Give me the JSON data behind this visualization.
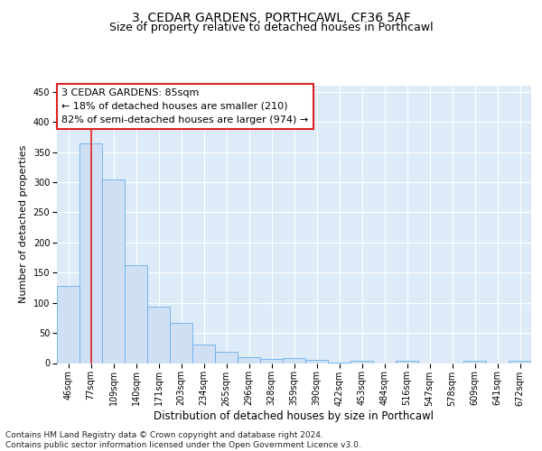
{
  "title_line1": "3, CEDAR GARDENS, PORTHCAWL, CF36 5AF",
  "title_line2": "Size of property relative to detached houses in Porthcawl",
  "xlabel": "Distribution of detached houses by size in Porthcawl",
  "ylabel": "Number of detached properties",
  "bin_labels": [
    "46sqm",
    "77sqm",
    "109sqm",
    "140sqm",
    "171sqm",
    "203sqm",
    "234sqm",
    "265sqm",
    "296sqm",
    "328sqm",
    "359sqm",
    "390sqm",
    "422sqm",
    "453sqm",
    "484sqm",
    "516sqm",
    "547sqm",
    "578sqm",
    "609sqm",
    "641sqm",
    "672sqm"
  ],
  "bar_heights": [
    128,
    365,
    305,
    163,
    93,
    67,
    30,
    18,
    9,
    6,
    8,
    5,
    1,
    3,
    0,
    3,
    0,
    0,
    3,
    0,
    3
  ],
  "bar_color": "#cfe0f5",
  "bar_edge_color": "#6aaee8",
  "vline_x": 1.0,
  "vline_color": "#dd2222",
  "annotation_text": "3 CEDAR GARDENS: 85sqm\n← 18% of detached houses are smaller (210)\n82% of semi-detached houses are larger (974) →",
  "annotation_box_color": "#ffffff",
  "annotation_box_edge": "#dd2222",
  "ylim": [
    0,
    460
  ],
  "yticks": [
    0,
    50,
    100,
    150,
    200,
    250,
    300,
    350,
    400,
    450
  ],
  "bg_color": "#ddeaf8",
  "footnote": "Contains HM Land Registry data © Crown copyright and database right 2024.\nContains public sector information licensed under the Open Government Licence v3.0.",
  "title_fontsize": 10,
  "subtitle_fontsize": 9,
  "xlabel_fontsize": 8.5,
  "ylabel_fontsize": 8,
  "tick_fontsize": 7,
  "annotation_fontsize": 8,
  "footnote_fontsize": 6.5
}
